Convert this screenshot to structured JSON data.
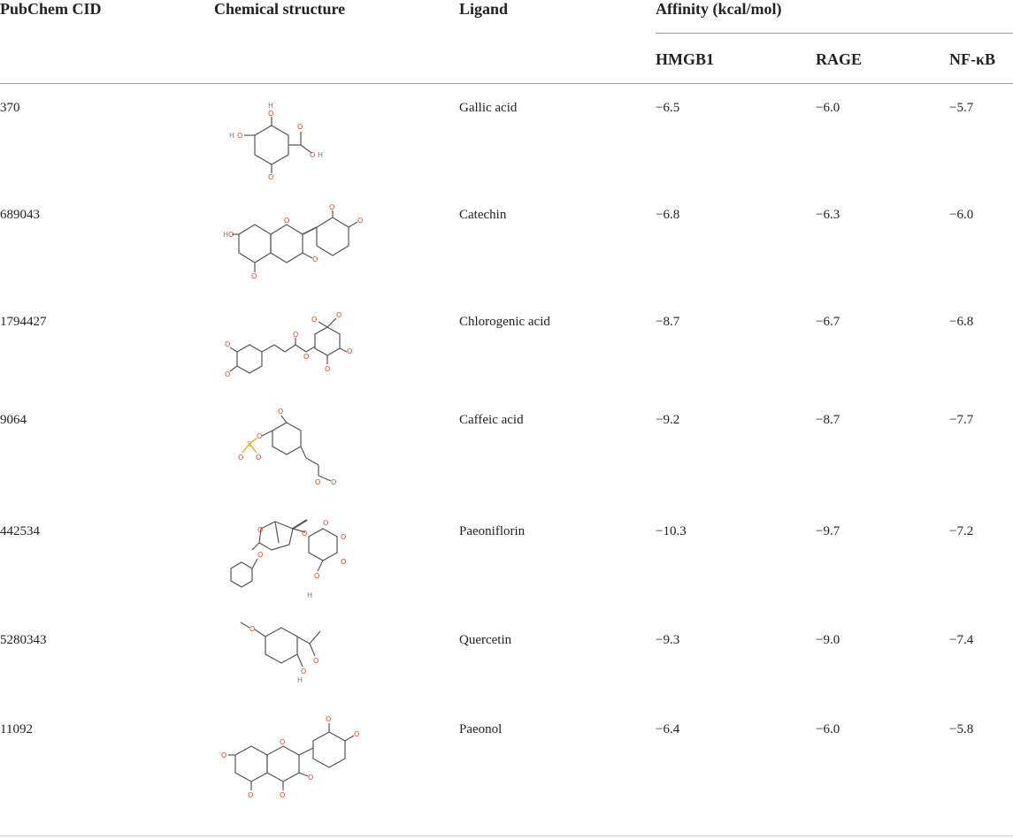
{
  "header": {
    "pubchem_cid": "PubChem CID",
    "chemical_structure": "Chemical structure",
    "ligand": "Ligand",
    "affinity": "Affinity (kcal/mol)",
    "targets": [
      "HMGB1",
      "RAGE",
      "NF-κB"
    ]
  },
  "rows": [
    {
      "cid": "370",
      "ligand": "Gallic acid",
      "hmgb1": "−6.5",
      "rage": "−6.0",
      "nfkb": "−5.7"
    },
    {
      "cid": "689043",
      "ligand": "Catechin",
      "hmgb1": "−6.8",
      "rage": "−6.3",
      "nfkb": "−6.0"
    },
    {
      "cid": "1794427",
      "ligand": "Chlorogenic acid",
      "hmgb1": "−8.7",
      "rage": "−6.7",
      "nfkb": "−6.8"
    },
    {
      "cid": "9064",
      "ligand": "Caffeic acid",
      "hmgb1": "−9.2",
      "rage": "−8.7",
      "nfkb": "−7.7"
    },
    {
      "cid": "442534",
      "ligand": "Paeoniflorin",
      "hmgb1": "−10.3",
      "rage": "−9.7",
      "nfkb": "−7.2"
    },
    {
      "cid": "5280343",
      "ligand": "Quercetin",
      "hmgb1": "−9.3",
      "rage": "−9.0",
      "nfkb": "−7.4"
    },
    {
      "cid": "11092",
      "ligand": "Paeonol",
      "hmgb1": "−6.4",
      "rage": "−6.0",
      "nfkb": "−5.8"
    }
  ],
  "atom_labels": {
    "oxygen": "O",
    "hydrogen": "H",
    "sulfur": "S"
  },
  "colors": {
    "oxygen": "#e0451f",
    "bond": "#555555",
    "sulfur": "#d6a51e",
    "rule": "#9a9a9a"
  }
}
